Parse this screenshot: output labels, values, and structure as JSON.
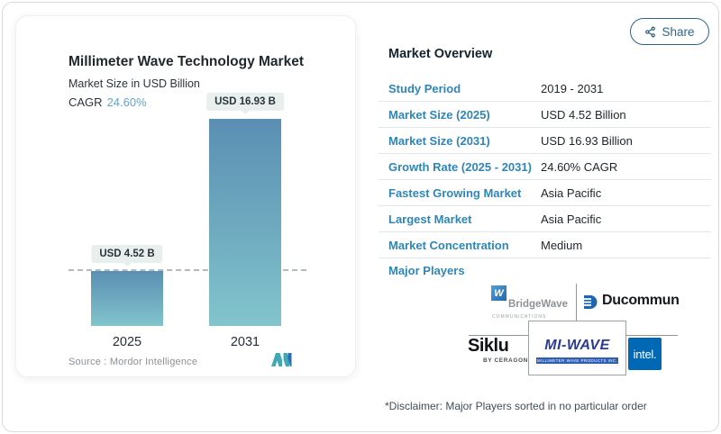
{
  "chart_card": {
    "title": "Millimeter Wave Technology Market",
    "subtitle": "Market Size in USD Billion",
    "cagr_label": "CAGR",
    "cagr_value": "24.60%",
    "source_label": "Source :  Mordor Intelligence"
  },
  "chart_data": {
    "type": "bar",
    "title": "Millimeter Wave Technology Market",
    "subtitle": "Market Size in USD Billion",
    "categories": [
      "2025",
      "2031"
    ],
    "values": [
      4.52,
      16.93
    ],
    "bar_labels": [
      "USD 4.52 B",
      "USD 16.93 B"
    ],
    "unit": "USD Billion",
    "cagr": "24.60%",
    "ylim": [
      0,
      18
    ],
    "grid": false,
    "baseline_dashed_at": 4.52,
    "bar_gradient": [
      "#5a8fb3",
      "#82c5cd"
    ],
    "source": "Mordor Intelligence"
  },
  "share": {
    "label": "Share"
  },
  "overview": {
    "heading": "Market Overview",
    "rows": [
      {
        "label": "Study Period",
        "value": "2019 - 2031"
      },
      {
        "label": "Market Size (2025)",
        "value": "USD 4.52 Billion"
      },
      {
        "label": "Market Size (2031)",
        "value": "USD 16.93 Billion"
      },
      {
        "label": "Growth Rate (2025 - 2031)",
        "value": "24.60% CAGR"
      },
      {
        "label": "Fastest Growing Market",
        "value": "Asia Pacific"
      },
      {
        "label": "Largest Market",
        "value": "Asia Pacific"
      },
      {
        "label": "Market Concentration",
        "value": "Medium"
      }
    ],
    "major_players_label": "Major Players"
  },
  "players": {
    "bridgewave": {
      "name": "BridgeWave",
      "sub": "COMMUNICATIONS",
      "icon_letter": "W"
    },
    "ducommun": {
      "name": "Ducommun"
    },
    "siklu": {
      "name": "Siklu",
      "sub": "BY CERAGON"
    },
    "miwave": {
      "name": "MI-WAVE",
      "sub": "MILLIMETER WAVE PRODUCTS INC."
    },
    "intel": {
      "name": "intel."
    }
  },
  "disclaimer": "*Disclaimer: Major Players sorted in no particular order",
  "colors": {
    "accent_blue": "#2e86b8",
    "share_teal": "#2f6585",
    "cagr_light_blue": "#64a3cc",
    "intel_blue": "#0068b5",
    "miwave_navy": "#2b3a94",
    "badge_bg": "#e9efec"
  }
}
